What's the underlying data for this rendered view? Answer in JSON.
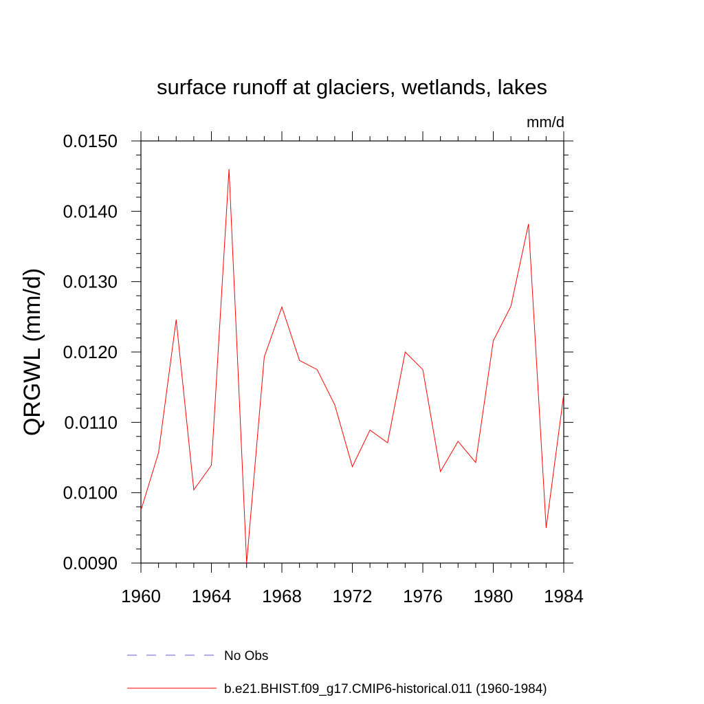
{
  "chart_data": {
    "type": "line",
    "title": "surface runoff at glaciers, wetlands, lakes",
    "units_label": "mm/d",
    "ylabel": "QRGWL  (mm/d)",
    "xlabel": "",
    "xlim": [
      1960,
      1984
    ],
    "ylim": [
      0.009,
      0.015
    ],
    "x_ticks": [
      1960,
      1964,
      1968,
      1972,
      1976,
      1980,
      1984
    ],
    "x_tick_labels": [
      "1960",
      "1964",
      "1968",
      "1972",
      "1976",
      "1980",
      "1984"
    ],
    "y_ticks": [
      0.009,
      0.01,
      0.011,
      0.012,
      0.013,
      0.014,
      0.015
    ],
    "y_tick_labels": [
      "0.0090",
      "0.0100",
      "0.0110",
      "0.0120",
      "0.0130",
      "0.0140",
      "0.0150"
    ],
    "grid": false,
    "legend_position": "bottom",
    "series": [
      {
        "name": "b.e21.BHIST.f09_g17.CMIP6-historical.011 (1960-1984)",
        "color": "#ff0000",
        "style": "solid",
        "x": [
          1960,
          1961,
          1962,
          1963,
          1964,
          1965,
          1966,
          1967,
          1968,
          1969,
          1970,
          1971,
          1972,
          1973,
          1974,
          1975,
          1976,
          1977,
          1978,
          1979,
          1980,
          1981,
          1982,
          1983,
          1984
        ],
        "y": [
          0.00975,
          0.01057,
          0.01246,
          0.01004,
          0.01039,
          0.0146,
          0.009,
          0.01193,
          0.01264,
          0.01188,
          0.01175,
          0.01125,
          0.01037,
          0.01089,
          0.01071,
          0.012,
          0.01175,
          0.0103,
          0.01073,
          0.01043,
          0.01216,
          0.01265,
          0.01382,
          0.0095,
          0.0114
        ]
      }
    ],
    "legend": [
      {
        "label": "No Obs",
        "color": "#6a5acd",
        "style": "dashed"
      },
      {
        "label": "b.e21.BHIST.f09_g17.CMIP6-historical.011 (1960-1984)",
        "color": "#ff0000",
        "style": "solid"
      }
    ]
  }
}
